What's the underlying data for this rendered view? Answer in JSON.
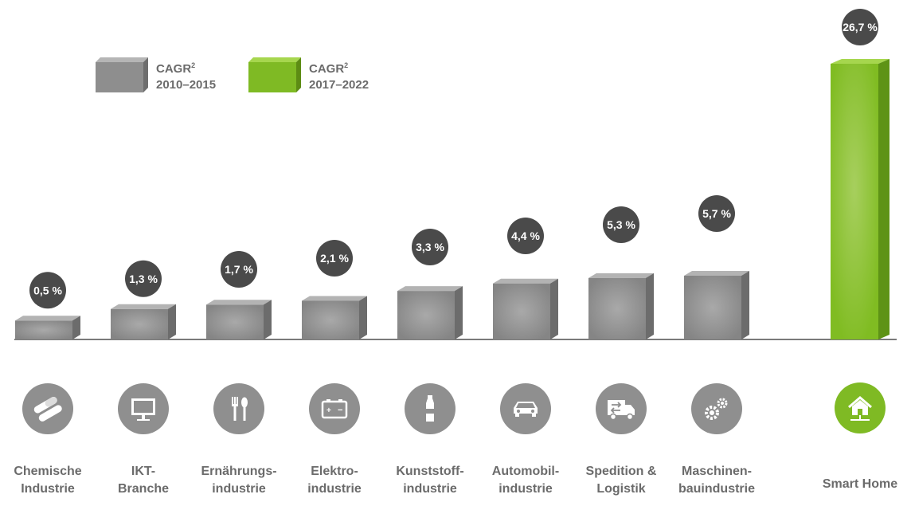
{
  "legend": {
    "series_a": {
      "label": "CAGR",
      "sup": "2",
      "period": "2010–2015"
    },
    "series_b": {
      "label": "CAGR",
      "sup": "2",
      "period": "2017–2022"
    }
  },
  "colors": {
    "gray": "#8c8c8c",
    "green": "#7fba24",
    "badge": "#4a4a4a",
    "baseline": "#7a7a7a"
  },
  "chart_data": {
    "type": "bar",
    "categories": [
      "Chemische Industrie",
      "IKT-Branche",
      "Ernährungs-industrie",
      "Elektro-industrie",
      "Kunststoff-industrie",
      "Automobil-industrie",
      "Spedition & Logistik",
      "Maschinen-bauindustrie",
      "Smart Home"
    ],
    "series": [
      {
        "name": "CAGR² 2010–2015",
        "values": [
          0.5,
          1.3,
          1.7,
          2.1,
          3.3,
          4.4,
          5.3,
          5.7,
          null
        ]
      },
      {
        "name": "CAGR² 2017–2022",
        "values": [
          null,
          null,
          null,
          null,
          null,
          null,
          null,
          null,
          26.7
        ]
      }
    ],
    "value_labels": [
      "0,5 %",
      "1,3 %",
      "1,7 %",
      "2,1 %",
      "3,3 %",
      "4,4 %",
      "5,3 %",
      "5,7 %",
      "26,7 %"
    ],
    "ylim": [
      0,
      26.7
    ],
    "grid": false
  },
  "items": [
    {
      "label": "Chemische\nIndustrie",
      "icon": "pills-icon"
    },
    {
      "label": "IKT-\nBranche",
      "icon": "monitor-icon"
    },
    {
      "label": "Ernährungs-\nindustrie",
      "icon": "fork-spoon-icon"
    },
    {
      "label": "Elektro-\nindustrie",
      "icon": "battery-icon"
    },
    {
      "label": "Kunststoff-\nindustrie",
      "icon": "bottle-icon"
    },
    {
      "label": "Automobil-\nindustrie",
      "icon": "car-icon"
    },
    {
      "label": "Spedition &\nLogistik",
      "icon": "truck-icon"
    },
    {
      "label": "Maschinen-\nbauindustrie",
      "icon": "gears-icon"
    },
    {
      "label": "Smart Home",
      "icon": "smart-home-icon"
    }
  ]
}
